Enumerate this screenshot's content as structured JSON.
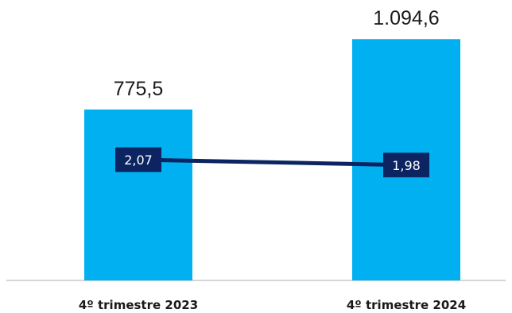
{
  "chart_data": {
    "type": "bar",
    "categories": [
      "4º trimestre 2023",
      "4º trimestre 2024"
    ],
    "bar_values": [
      775.5,
      1094.6
    ],
    "bar_labels": [
      "775,5",
      "1.094,6"
    ],
    "line_values": [
      2.07,
      1.98
    ],
    "line_labels": [
      "2,07",
      "1,98"
    ],
    "title": "",
    "xlabel": "",
    "ylabel": "",
    "grid": false,
    "legend": "none",
    "colors": {
      "bar": "#00b0f0",
      "line": "#0c2461",
      "axis": "#c8c8c8"
    }
  }
}
